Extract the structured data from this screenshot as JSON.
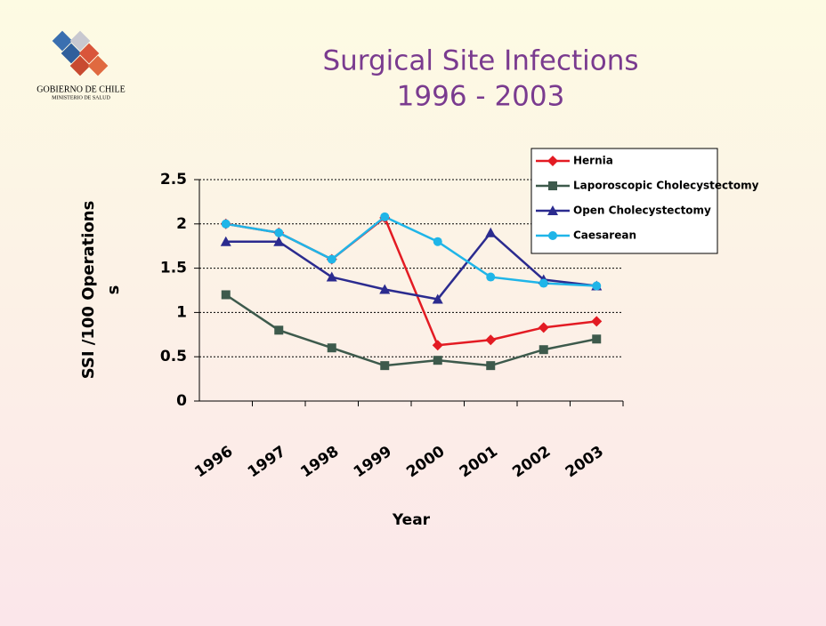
{
  "logo": {
    "line1": "GOBIERNO DE CHILE",
    "line2": "MINISTERIO DE SALUD"
  },
  "chart_data": {
    "type": "line",
    "title": [
      "Surgical Site Infections",
      "1996 - 2003"
    ],
    "ylabel": [
      "SSI /100 Operations",
      "s"
    ],
    "xlabel": "Year",
    "categories": [
      "1996",
      "1997",
      "1998",
      "1999",
      "2000",
      "2001",
      "2002",
      "2003"
    ],
    "ylim": [
      0,
      2.5
    ],
    "yticks": [
      0,
      0.5,
      1,
      1.5,
      2,
      2.5
    ],
    "grid": true,
    "legend": "top-right",
    "series": [
      {
        "name": "Hernia",
        "color": "#e31b23",
        "marker": "diamond",
        "values": [
          2.0,
          1.9,
          1.6,
          2.07,
          0.63,
          0.69,
          0.83,
          0.9
        ]
      },
      {
        "name": "Laporoscopic Cholecystectomy",
        "color": "#3d5a4c",
        "marker": "square",
        "values": [
          1.2,
          0.8,
          0.6,
          0.4,
          0.46,
          0.4,
          0.58,
          0.7
        ]
      },
      {
        "name": "Open Cholecystectomy",
        "color": "#2b2b8f",
        "marker": "triangle",
        "values": [
          1.8,
          1.8,
          1.4,
          1.26,
          1.15,
          1.9,
          1.37,
          1.3
        ]
      },
      {
        "name": "Caesarean",
        "color": "#1fb5e8",
        "marker": "circle",
        "values": [
          2.0,
          1.9,
          1.6,
          2.08,
          1.8,
          1.4,
          1.33,
          1.3
        ]
      }
    ]
  }
}
